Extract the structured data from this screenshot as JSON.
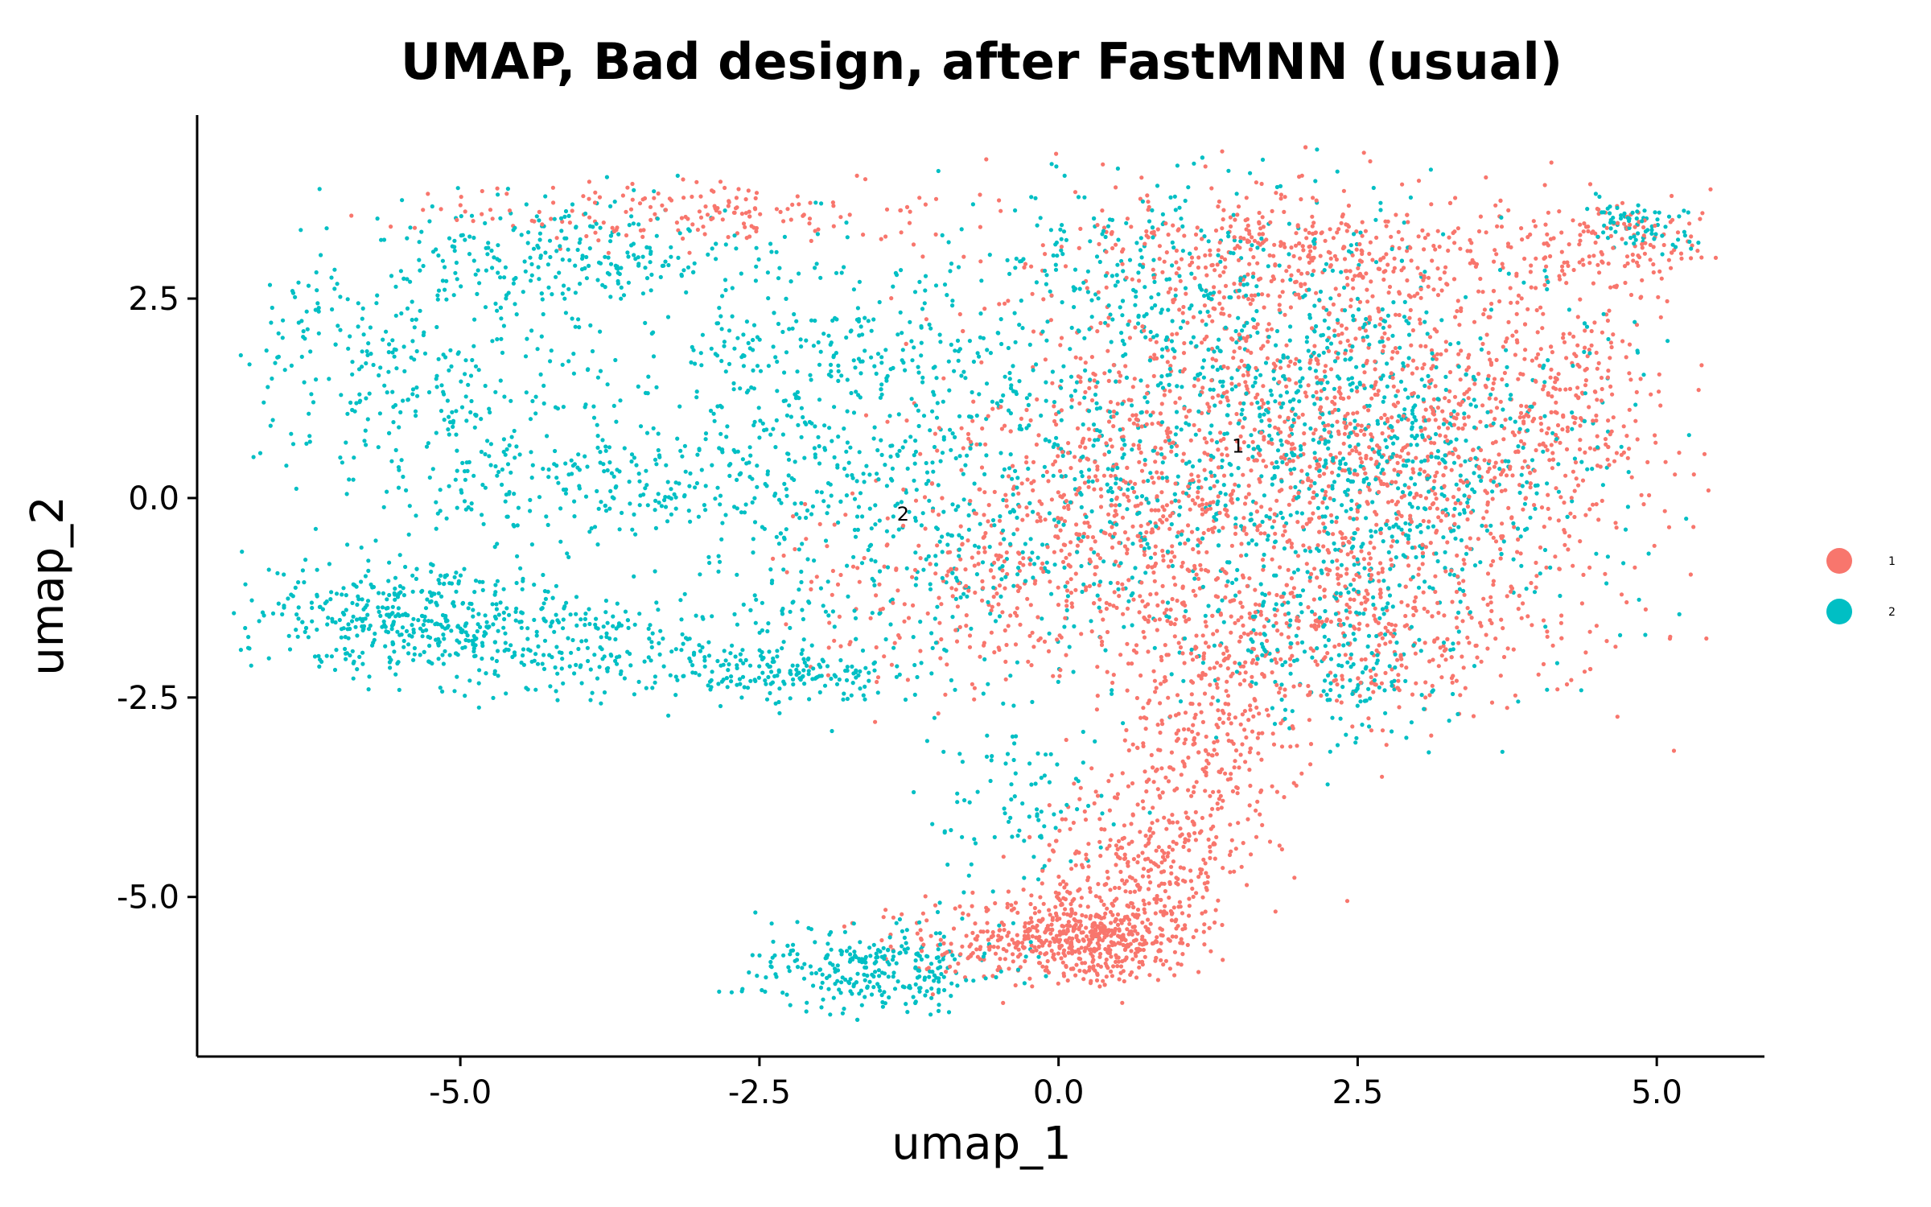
{
  "chart_data": {
    "type": "scatter",
    "title": "UMAP, Bad design, after FastMNN (usual)",
    "xlabel": "umap_1",
    "ylabel": "umap_2",
    "xlim": [
      -7.2,
      5.9
    ],
    "ylim": [
      -7.0,
      4.8
    ],
    "xticks": [
      -5.0,
      -2.5,
      0.0,
      2.5,
      5.0
    ],
    "yticks": [
      -5.0,
      -2.5,
      0.0,
      2.5
    ],
    "xtick_labels": [
      "-5.0",
      "-2.5",
      "0.0",
      "2.5",
      "5.0"
    ],
    "ytick_labels": [
      "-5.0",
      "-2.5",
      "0.0",
      "2.5"
    ],
    "legend_position": "right",
    "grid": false,
    "series": [
      {
        "name": "1",
        "color": "#F8766D",
        "regions": [
          {
            "x": 1.8,
            "y": 0.8,
            "sx": 1.2,
            "sy": 1.4,
            "w": 0.24
          },
          {
            "x": 3.3,
            "y": 0.6,
            "sx": 0.9,
            "sy": 1.2,
            "w": 0.12
          },
          {
            "x": 2.0,
            "y": 3.1,
            "sx": 1.0,
            "sy": 0.35,
            "w": 0.08
          },
          {
            "x": -3.0,
            "y": 3.55,
            "sx": 1.0,
            "sy": 0.18,
            "w": 0.04
          },
          {
            "x": 0.4,
            "y": -0.5,
            "sx": 0.6,
            "sy": 0.9,
            "w": 0.08
          },
          {
            "x": 1.3,
            "y": -3.0,
            "sx": 0.35,
            "sy": 0.9,
            "w": 0.08
          },
          {
            "x": 0.6,
            "y": -4.6,
            "sx": 0.4,
            "sy": 0.5,
            "w": 0.06
          },
          {
            "x": 0.3,
            "y": -5.5,
            "sx": 0.4,
            "sy": 0.25,
            "w": 0.1
          },
          {
            "x": -0.4,
            "y": -5.6,
            "sx": 0.5,
            "sy": 0.25,
            "w": 0.04
          },
          {
            "x": 4.6,
            "y": 3.2,
            "sx": 0.45,
            "sy": 0.3,
            "w": 0.03
          },
          {
            "x": 2.6,
            "y": -1.8,
            "sx": 0.8,
            "sy": 0.6,
            "w": 0.06
          },
          {
            "x": -1.0,
            "y": -1.0,
            "sx": 0.6,
            "sy": 0.7,
            "w": 0.04
          },
          {
            "x": 4.3,
            "y": 1.4,
            "sx": 0.4,
            "sy": 0.8,
            "w": 0.03
          }
        ]
      },
      {
        "name": "2",
        "color": "#00BFC4",
        "regions": [
          {
            "x": 1.6,
            "y": 0.9,
            "sx": 1.3,
            "sy": 1.3,
            "w": 0.22
          },
          {
            "x": 3.0,
            "y": 0.3,
            "sx": 0.8,
            "sy": 1.0,
            "w": 0.06
          },
          {
            "x": -1.2,
            "y": -0.2,
            "sx": 1.0,
            "sy": 1.0,
            "w": 0.09
          },
          {
            "x": -5.5,
            "y": -1.5,
            "sx": 0.7,
            "sy": 0.35,
            "w": 0.08
          },
          {
            "x": -4.0,
            "y": -1.8,
            "sx": 1.0,
            "sy": 0.35,
            "w": 0.06
          },
          {
            "x": -2.3,
            "y": -2.2,
            "sx": 0.5,
            "sy": 0.15,
            "w": 0.03
          },
          {
            "x": -5.3,
            "y": 1.6,
            "sx": 0.8,
            "sy": 0.8,
            "w": 0.07
          },
          {
            "x": -4.0,
            "y": 3.0,
            "sx": 0.8,
            "sy": 0.35,
            "w": 0.05
          },
          {
            "x": -3.5,
            "y": 0.2,
            "sx": 1.0,
            "sy": 0.4,
            "w": 0.05
          },
          {
            "x": -2.0,
            "y": 1.7,
            "sx": 0.9,
            "sy": 0.6,
            "w": 0.05
          },
          {
            "x": -1.5,
            "y": -5.9,
            "sx": 0.5,
            "sy": 0.25,
            "w": 0.06
          },
          {
            "x": 0.6,
            "y": 3.0,
            "sx": 0.8,
            "sy": 0.4,
            "w": 0.03
          },
          {
            "x": 4.9,
            "y": 3.4,
            "sx": 0.25,
            "sy": 0.15,
            "w": 0.015
          },
          {
            "x": -0.4,
            "y": -3.8,
            "sx": 0.4,
            "sy": 0.7,
            "w": 0.02
          },
          {
            "x": 2.3,
            "y": -2.0,
            "sx": 0.6,
            "sy": 0.6,
            "w": 0.04
          }
        ]
      }
    ],
    "annotations": [
      {
        "text": "1",
        "x": 1.5,
        "y": 0.65
      },
      {
        "text": "2",
        "x": -1.3,
        "y": -0.2
      }
    ],
    "legend": [
      {
        "label": "1",
        "color": "#F8766D"
      },
      {
        "label": "2",
        "color": "#00BFC4"
      }
    ]
  }
}
